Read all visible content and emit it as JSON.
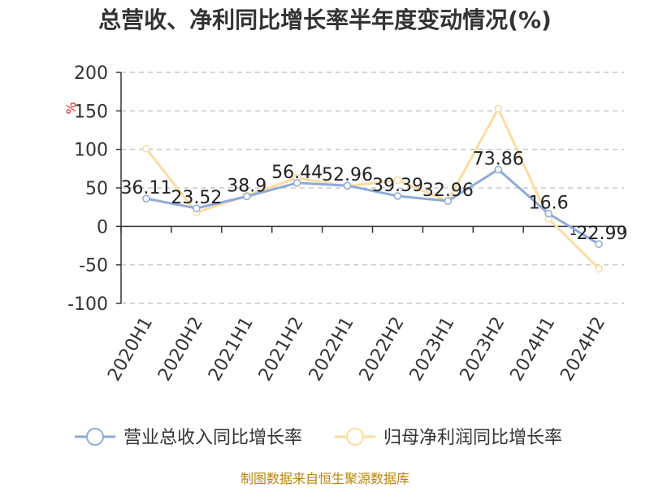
{
  "chart_data": {
    "type": "line",
    "title": "总营收、净利同比增长率半年度变动情况(%)",
    "y_unit": "%",
    "categories": [
      "2020H1",
      "2020H2",
      "2021H1",
      "2021H2",
      "2022H1",
      "2022H2",
      "2023H1",
      "2023H2",
      "2024H1",
      "2024H2"
    ],
    "ylim": [
      -100,
      200
    ],
    "yticks": [
      -100,
      -50,
      0,
      50,
      100,
      150,
      200
    ],
    "grid": true,
    "legend_position": "bottom",
    "series": [
      {
        "name": "营业总收入同比增长率",
        "color": "#8eaad8",
        "values": [
          36.11,
          23.52,
          38.9,
          56.44,
          52.96,
          39.39,
          32.96,
          73.86,
          16.6,
          -22.99
        ],
        "labels": [
          "36.11",
          "23.52",
          "38.9",
          "56.44",
          "52.96",
          "39.39",
          "32.96",
          "73.86",
          "16.6",
          "-22.99"
        ]
      },
      {
        "name": "归母净利润同比增长率",
        "color": "#fcdca0",
        "values": [
          101,
          18,
          40,
          63,
          52,
          60,
          33,
          153,
          10,
          -55
        ]
      }
    ],
    "source": "制图数据来自恒生聚源数据库"
  }
}
